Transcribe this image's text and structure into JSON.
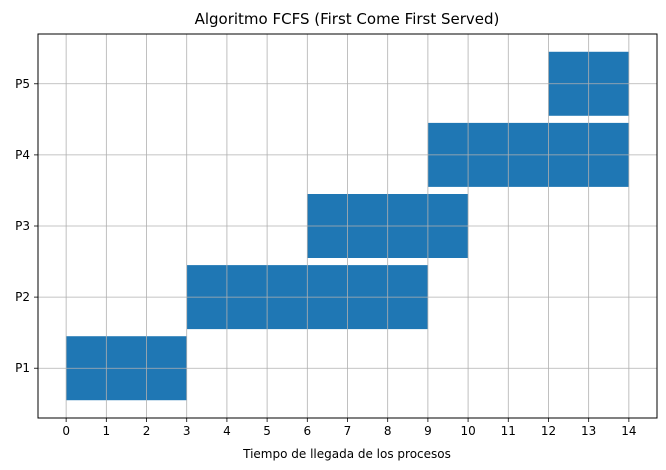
{
  "chart_data": {
    "type": "bar",
    "orientation": "horizontal",
    "title": "Algoritmo FCFS (First Come First Served)",
    "xlabel": "Tiempo de llegada de los procesos",
    "ylabel": "",
    "xlim": [
      -0.7,
      14.7
    ],
    "x_ticks": [
      0,
      1,
      2,
      3,
      4,
      5,
      6,
      7,
      8,
      9,
      10,
      11,
      12,
      13,
      14
    ],
    "categories": [
      "P1",
      "P2",
      "P3",
      "P4",
      "P5"
    ],
    "series": [
      {
        "start": [
          0,
          3,
          6,
          9,
          12
        ],
        "duration": [
          3,
          6,
          4,
          5,
          2
        ],
        "color": "#1f77b4"
      }
    ],
    "grid": true,
    "legend": "none",
    "grid_color": "#b0b0b0"
  }
}
